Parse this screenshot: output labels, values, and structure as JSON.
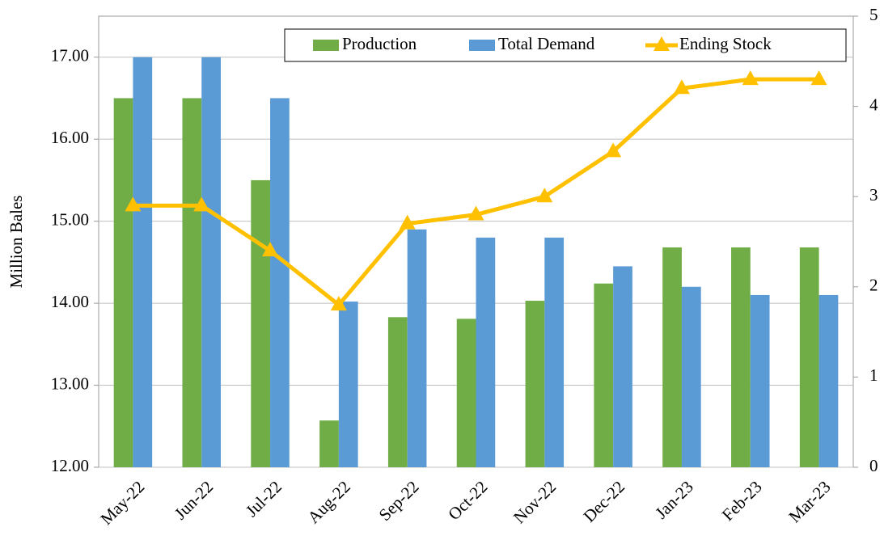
{
  "chart_data": {
    "type": "bar-line",
    "y_label": "Million Bales",
    "categories": [
      "May-22",
      "Jun-22",
      "Jul-22",
      "Aug-22",
      "Sep-22",
      "Oct-22",
      "Nov-22",
      "Dec-22",
      "Jan-23",
      "Feb-23",
      "Mar-23"
    ],
    "series": [
      {
        "name": "Production",
        "type": "bar",
        "color": "#70ad47",
        "values": [
          16.5,
          16.5,
          15.5,
          12.57,
          13.83,
          13.81,
          14.03,
          14.24,
          14.68,
          14.68,
          14.68
        ]
      },
      {
        "name": "Total Demand",
        "type": "bar",
        "color": "#5b9bd5",
        "values": [
          17.0,
          17.0,
          16.5,
          14.02,
          14.9,
          14.8,
          14.8,
          14.45,
          14.2,
          14.1,
          14.1
        ]
      },
      {
        "name": "Ending Stock",
        "type": "line",
        "axis": "y2",
        "color": "#ffc000",
        "values": [
          2.9,
          2.9,
          2.4,
          1.8,
          2.7,
          2.8,
          3.0,
          3.5,
          4.2,
          4.3,
          4.3
        ]
      }
    ],
    "ylim": [
      12,
      17.5
    ],
    "yticks": [
      {
        "value": 12,
        "label": "12.00"
      },
      {
        "value": 13,
        "label": "13.00"
      },
      {
        "value": 14,
        "label": "14.00"
      },
      {
        "value": 15,
        "label": "15.00"
      },
      {
        "value": 16,
        "label": "16.00"
      },
      {
        "value": 17,
        "label": "17.00"
      }
    ],
    "y2lim": [
      0,
      5
    ],
    "y2ticks": [
      0,
      1,
      2,
      3,
      4,
      5
    ],
    "grid": true,
    "legend": "top-right"
  }
}
